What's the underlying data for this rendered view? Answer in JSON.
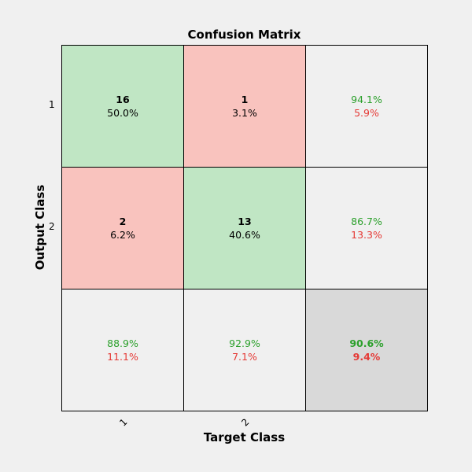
{
  "chart_data": {
    "type": "heatmap",
    "title": "Confusion Matrix",
    "xlabel": "Target Class",
    "ylabel": "Output Class",
    "x_tick_labels": [
      "1",
      "2"
    ],
    "y_tick_labels": [
      "1",
      "2"
    ],
    "matrix": [
      [
        {
          "count": "16",
          "percent": "50.0%"
        },
        {
          "count": "1",
          "percent": "3.1%"
        }
      ],
      [
        {
          "count": "2",
          "percent": "6.2%"
        },
        {
          "count": "13",
          "percent": "40.6%"
        }
      ]
    ],
    "row_summary": [
      {
        "correct": "94.1%",
        "incorrect": "5.9%"
      },
      {
        "correct": "86.7%",
        "incorrect": "13.3%"
      }
    ],
    "column_summary": [
      {
        "correct": "88.9%",
        "incorrect": "11.1%"
      },
      {
        "correct": "92.9%",
        "incorrect": "7.1%"
      }
    ],
    "overall": {
      "correct": "90.6%",
      "incorrect": "9.4%"
    }
  },
  "colors": {
    "diagonal_cell": "#c0e6c4",
    "off_diagonal_cell": "#f9c3be",
    "summary_cell": "#f0f0f0",
    "overall_cell": "#d9d9d9",
    "correct_text": "#2ca02c",
    "incorrect_text": "#e53935"
  }
}
